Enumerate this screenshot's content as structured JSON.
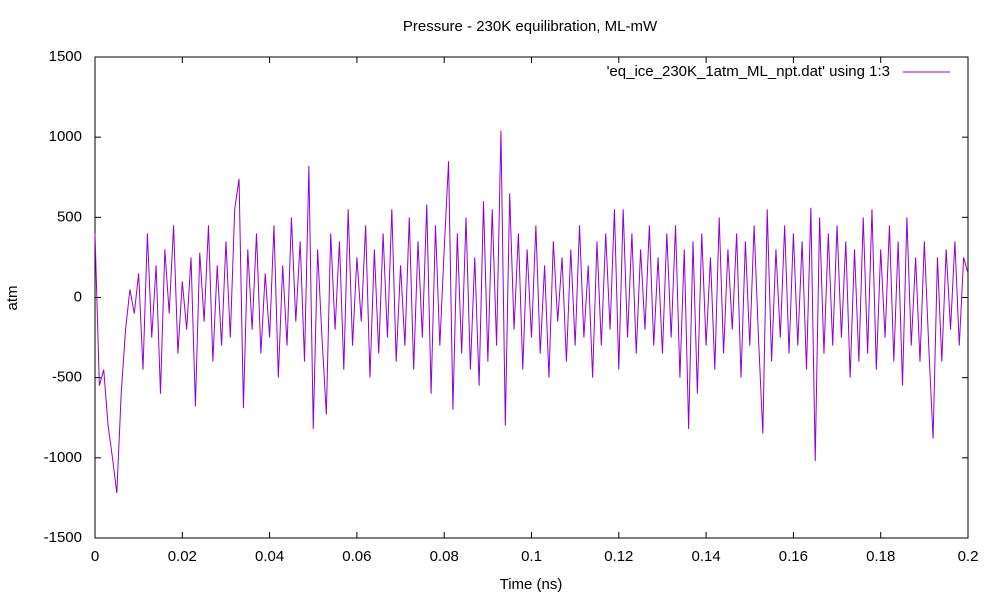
{
  "chart_data": {
    "type": "line",
    "title": "Pressure - 230K equilibration, ML-mW",
    "xlabel": "Time (ns)",
    "ylabel": "atm",
    "xlim": [
      0,
      0.2
    ],
    "ylim": [
      -1500,
      1500
    ],
    "xticks": [
      0,
      0.02,
      0.04,
      0.06,
      0.08,
      0.1,
      0.12,
      0.14,
      0.16,
      0.18,
      0.2
    ],
    "yticks": [
      -1500,
      -1000,
      -500,
      0,
      500,
      1000,
      1500
    ],
    "grid": false,
    "legend": "top-right",
    "x": [
      0,
      0.001,
      0.002,
      0.003,
      0.004,
      0.005,
      0.006,
      0.007,
      0.008,
      0.009,
      0.01,
      0.011,
      0.012,
      0.013,
      0.014,
      0.015,
      0.016,
      0.017,
      0.018,
      0.019,
      0.02,
      0.021,
      0.022,
      0.023,
      0.024,
      0.025,
      0.026,
      0.027,
      0.028,
      0.029,
      0.03,
      0.031,
      0.032,
      0.033,
      0.034,
      0.035,
      0.036,
      0.037,
      0.038,
      0.039,
      0.04,
      0.041,
      0.042,
      0.043,
      0.044,
      0.045,
      0.046,
      0.047,
      0.048,
      0.049,
      0.05,
      0.051,
      0.052,
      0.053,
      0.054,
      0.055,
      0.056,
      0.057,
      0.058,
      0.059,
      0.06,
      0.061,
      0.062,
      0.063,
      0.064,
      0.065,
      0.066,
      0.067,
      0.068,
      0.069,
      0.07,
      0.071,
      0.072,
      0.073,
      0.074,
      0.075,
      0.076,
      0.077,
      0.078,
      0.079,
      0.08,
      0.081,
      0.082,
      0.083,
      0.084,
      0.085,
      0.086,
      0.087,
      0.088,
      0.089,
      0.09,
      0.091,
      0.092,
      0.093,
      0.094,
      0.095,
      0.096,
      0.097,
      0.098,
      0.099,
      0.1,
      0.101,
      0.102,
      0.103,
      0.104,
      0.105,
      0.106,
      0.107,
      0.108,
      0.109,
      0.11,
      0.111,
      0.112,
      0.113,
      0.114,
      0.115,
      0.116,
      0.117,
      0.118,
      0.119,
      0.12,
      0.121,
      0.122,
      0.123,
      0.124,
      0.125,
      0.126,
      0.127,
      0.128,
      0.129,
      0.13,
      0.131,
      0.132,
      0.133,
      0.134,
      0.135,
      0.136,
      0.137,
      0.138,
      0.139,
      0.14,
      0.141,
      0.142,
      0.143,
      0.144,
      0.145,
      0.146,
      0.147,
      0.148,
      0.149,
      0.15,
      0.151,
      0.152,
      0.153,
      0.154,
      0.155,
      0.156,
      0.157,
      0.158,
      0.159,
      0.16,
      0.161,
      0.162,
      0.163,
      0.164,
      0.165,
      0.166,
      0.167,
      0.168,
      0.169,
      0.17,
      0.171,
      0.172,
      0.173,
      0.174,
      0.175,
      0.176,
      0.177,
      0.178,
      0.179,
      0.18,
      0.181,
      0.182,
      0.183,
      0.184,
      0.185,
      0.186,
      0.187,
      0.188,
      0.189,
      0.19,
      0.191,
      0.192,
      0.193,
      0.194,
      0.195,
      0.196,
      0.197,
      0.198,
      0.199,
      0.2
    ],
    "series": [
      {
        "name": "'eq_ice_230K_1atm_ML_npt.dat' using 1:3",
        "color": "#9400d3",
        "values": [
          400,
          -550,
          -450,
          -800,
          -1000,
          -1220,
          -600,
          -200,
          50,
          -100,
          150,
          -450,
          400,
          -250,
          200,
          -600,
          300,
          -100,
          450,
          -350,
          100,
          -200,
          250,
          -680,
          280,
          -150,
          450,
          -400,
          200,
          -300,
          350,
          -250,
          550,
          740,
          -690,
          300,
          -200,
          400,
          -350,
          150,
          -250,
          450,
          -500,
          200,
          -300,
          500,
          -150,
          350,
          -400,
          820,
          -820,
          300,
          -250,
          -730,
          400,
          -200,
          350,
          -450,
          550,
          -300,
          250,
          -150,
          450,
          -500,
          300,
          -350,
          400,
          -250,
          550,
          -400,
          200,
          -300,
          500,
          -450,
          350,
          -250,
          580,
          -600,
          450,
          -300,
          300,
          850,
          -700,
          400,
          -350,
          500,
          -450,
          250,
          -550,
          600,
          -400,
          550,
          -300,
          1040,
          -800,
          650,
          -200,
          400,
          -450,
          300,
          -250,
          450,
          -350,
          200,
          -500,
          350,
          -150,
          250,
          -400,
          300,
          -300,
          450,
          -250,
          200,
          -500,
          350,
          -300,
          400,
          -200,
          550,
          -450,
          550,
          -250,
          400,
          -350,
          300,
          -200,
          450,
          -300,
          250,
          -350,
          400,
          -250,
          450,
          -500,
          300,
          -820,
          350,
          -600,
          400,
          -300,
          250,
          -450,
          500,
          -350,
          300,
          -200,
          400,
          -500,
          350,
          -300,
          450,
          -250,
          -850,
          550,
          -400,
          300,
          -250,
          450,
          -350,
          400,
          -300,
          350,
          -450,
          560,
          -1020,
          500,
          -350,
          400,
          -300,
          450,
          -250,
          350,
          -500,
          300,
          -400,
          500,
          -350,
          550,
          -450,
          300,
          -250,
          450,
          -400,
          350,
          -550,
          500,
          -300,
          250,
          -400,
          350,
          -300,
          -880,
          250,
          -400,
          300,
          -200,
          350,
          -300,
          250,
          150
        ]
      }
    ]
  }
}
